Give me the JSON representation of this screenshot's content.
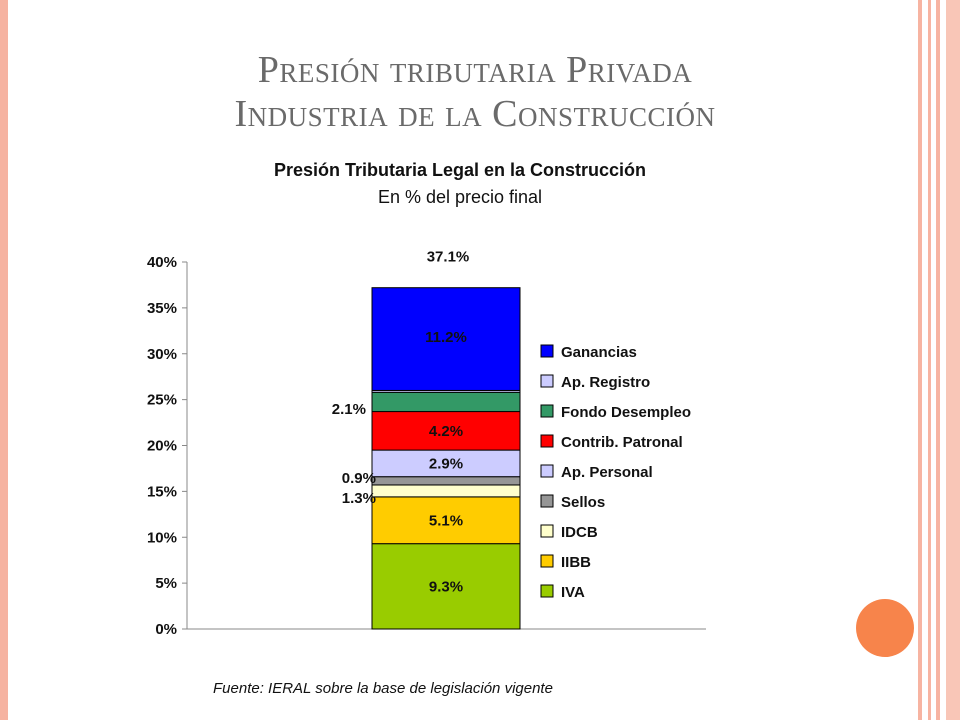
{
  "slide": {
    "title_line1": "Presión tributaria Privada",
    "title_line2": "Industria de la Construcción"
  },
  "footer": "Fuente: IERAL sobre la base de legislación vigente",
  "colors": {
    "accent_border": "#f7b4a2",
    "decor_circle": "#f7844b"
  },
  "chart_data": {
    "type": "bar",
    "stacked": true,
    "title": "Presión Tributaria Legal en la Construcción",
    "subtitle": "En % del precio final",
    "categories": [
      ""
    ],
    "ylim": [
      0,
      40
    ],
    "y_ticks": [
      "0%",
      "5%",
      "10%",
      "15%",
      "20%",
      "25%",
      "30%",
      "35%",
      "40%"
    ],
    "total_label": "37.1%",
    "series": [
      {
        "name": "IVA",
        "values": [
          9.3
        ],
        "label": "9.3%",
        "color": "#99cc00"
      },
      {
        "name": "IIBB",
        "values": [
          5.1
        ],
        "label": "5.1%",
        "color": "#ffcc00"
      },
      {
        "name": "IDCB",
        "values": [
          1.3
        ],
        "label": "1.3%",
        "color": "#ffffcc"
      },
      {
        "name": "Sellos",
        "values": [
          0.9
        ],
        "label": "0.9%",
        "color": "#969696"
      },
      {
        "name": "Ap. Personal",
        "values": [
          2.9
        ],
        "label": "2.9%",
        "color": "#ccccff"
      },
      {
        "name": "Contrib. Patronal",
        "values": [
          4.2
        ],
        "label": "4.2%",
        "color": "#ff0000"
      },
      {
        "name": "Fondo Desempleo",
        "values": [
          2.1
        ],
        "label": "2.1%",
        "color": "#339966"
      },
      {
        "name": "Ap. Registro",
        "values": [
          0.2
        ],
        "label": "",
        "color": "#ccccff"
      },
      {
        "name": "Ganancias",
        "values": [
          11.2
        ],
        "label": "11.2%",
        "color": "#0000ff"
      }
    ],
    "legend_order": [
      "Ganancias",
      "Ap. Registro",
      "Fondo Desempleo",
      "Contrib. Patronal",
      "Ap. Personal",
      "Sellos",
      "IDCB",
      "IIBB",
      "IVA"
    ],
    "legend_position": "right",
    "grid": false
  }
}
